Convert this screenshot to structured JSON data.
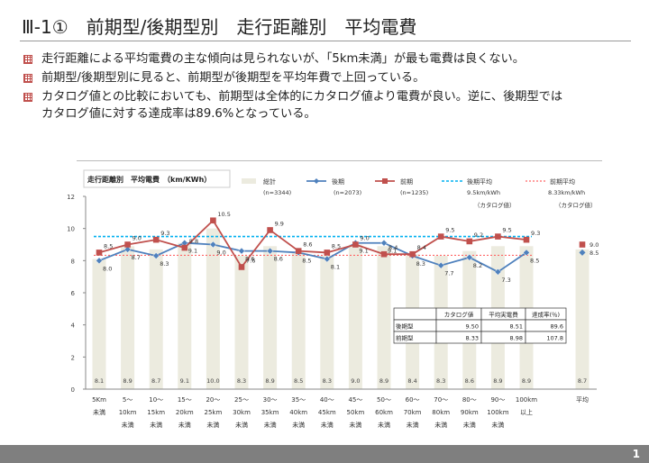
{
  "title": "Ⅲ-1①　前期型/後期型別　走行距離別　平均電費",
  "bullets": [
    "走行距離による平均電費の主な傾向は見られないが、「5km未満」が最も電費は良くない。",
    "前期型/後期型別に見ると、前期型が後期型を平均年費で上回っている。",
    "カタログ値との比較においても、前期型は全体的にカタログ値より電費が良い。逆に、後期型では",
    "カタログ値に対する達成率は89.6%となっている。"
  ],
  "page_number": "1",
  "colors": {
    "bar": "#ecebdf",
    "late": "#4f81bd",
    "early": "#c0504d",
    "late_avg": "#00b0f0",
    "early_avg": "#ff6666"
  },
  "chart_data": {
    "type": "bar+line",
    "title": "走行距離別　平均電費　（km/KWh）",
    "ylim": [
      0,
      12
    ],
    "yticks": [
      0,
      2,
      4,
      6,
      8,
      10,
      12
    ],
    "categories": [
      [
        "5Km",
        "未満",
        ""
      ],
      [
        "5～",
        "10km",
        "未満"
      ],
      [
        "10～",
        "15km",
        "未満"
      ],
      [
        "15～",
        "20km",
        "未満"
      ],
      [
        "20～",
        "25km",
        "未満"
      ],
      [
        "25～",
        "30km",
        "未満"
      ],
      [
        "30～",
        "35km",
        "未満"
      ],
      [
        "35～",
        "40km",
        "未満"
      ],
      [
        "40～",
        "45km",
        "未満"
      ],
      [
        "45～",
        "50km",
        "未満"
      ],
      [
        "50～",
        "60km",
        "未満"
      ],
      [
        "60～",
        "70km",
        "未満"
      ],
      [
        "70～",
        "80km",
        "未満"
      ],
      [
        "80～",
        "90km",
        "未満"
      ],
      [
        "90～",
        "100km",
        "未満"
      ],
      [
        "100km",
        "以上",
        ""
      ]
    ],
    "avg_category": "平均",
    "legend": [
      {
        "label": "総計",
        "sub": "(n=3344)"
      },
      {
        "label": "後期",
        "sub": "(n=2073)"
      },
      {
        "label": "前期",
        "sub": "(n=1235)"
      },
      {
        "label": "後期平均",
        "sub": "9.5km/kWh",
        "sub2": "（カタログ値）"
      },
      {
        "label": "前期平均",
        "sub": "8.33km/kWh",
        "sub2": "（カタログ値）"
      }
    ],
    "total": [
      8.1,
      8.9,
      8.7,
      9.1,
      10.0,
      8.3,
      8.9,
      8.5,
      8.3,
      9.0,
      8.9,
      8.4,
      8.3,
      8.6,
      8.9,
      8.9
    ],
    "total_avg": 8.7,
    "late": [
      8.0,
      8.7,
      8.3,
      9.1,
      9.0,
      8.6,
      8.6,
      8.5,
      8.1,
      9.1,
      9.1,
      8.3,
      7.7,
      8.2,
      7.3,
      8.5
    ],
    "late_avg": 8.5,
    "early": [
      8.5,
      9.0,
      9.3,
      8.8,
      10.5,
      7.6,
      9.9,
      8.6,
      8.5,
      9.0,
      8.4,
      8.4,
      9.5,
      9.2,
      9.5,
      9.3
    ],
    "early_avg": 9.0,
    "late_catalog": 9.5,
    "early_catalog": 8.33,
    "table": {
      "headers": [
        "",
        "カタログ値",
        "平均実電費",
        "達成率(％)"
      ],
      "rows": [
        [
          "後期型",
          "9.50",
          "8.51",
          "89.6"
        ],
        [
          "前期型",
          "8.33",
          "8.98",
          "107.8"
        ]
      ]
    }
  }
}
